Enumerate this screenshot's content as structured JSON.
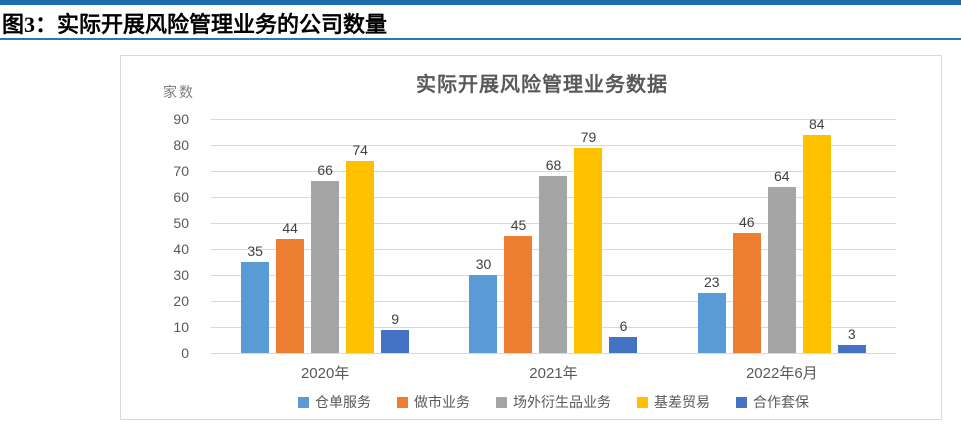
{
  "header": {
    "caption": "图3：实际开展风险管理业务的公司数量"
  },
  "chart_data": {
    "type": "bar",
    "title": "实际开展风险管理业务数据",
    "ylabel": "家数",
    "xlabel": "",
    "categories": [
      "2020年",
      "2021年",
      "2022年6月"
    ],
    "series": [
      {
        "name": "仓单服务",
        "color": "#5b9bd5",
        "values": [
          35,
          30,
          23
        ]
      },
      {
        "name": "做市业务",
        "color": "#ed7d31",
        "values": [
          44,
          45,
          46
        ]
      },
      {
        "name": "场外衍生品业务",
        "color": "#a5a5a5",
        "values": [
          66,
          68,
          64
        ]
      },
      {
        "name": "基差贸易",
        "color": "#ffc000",
        "values": [
          74,
          79,
          84
        ]
      },
      {
        "name": "合作套保",
        "color": "#4472c4",
        "values": [
          9,
          6,
          3
        ]
      }
    ],
    "ylim": [
      0,
      90
    ],
    "ytick_step": 10,
    "grid": true,
    "legend_position": "bottom",
    "data_labels": true
  },
  "colors": {
    "header_top_rule": "#1e6cb0",
    "header_bottom_rule": "#2e75b6",
    "axis_text": "#595959",
    "unit_text": "#7f7f7f",
    "data_label_text": "#404040",
    "gridline": "#d9d9d9",
    "chart_border": "#d9d9d9"
  }
}
